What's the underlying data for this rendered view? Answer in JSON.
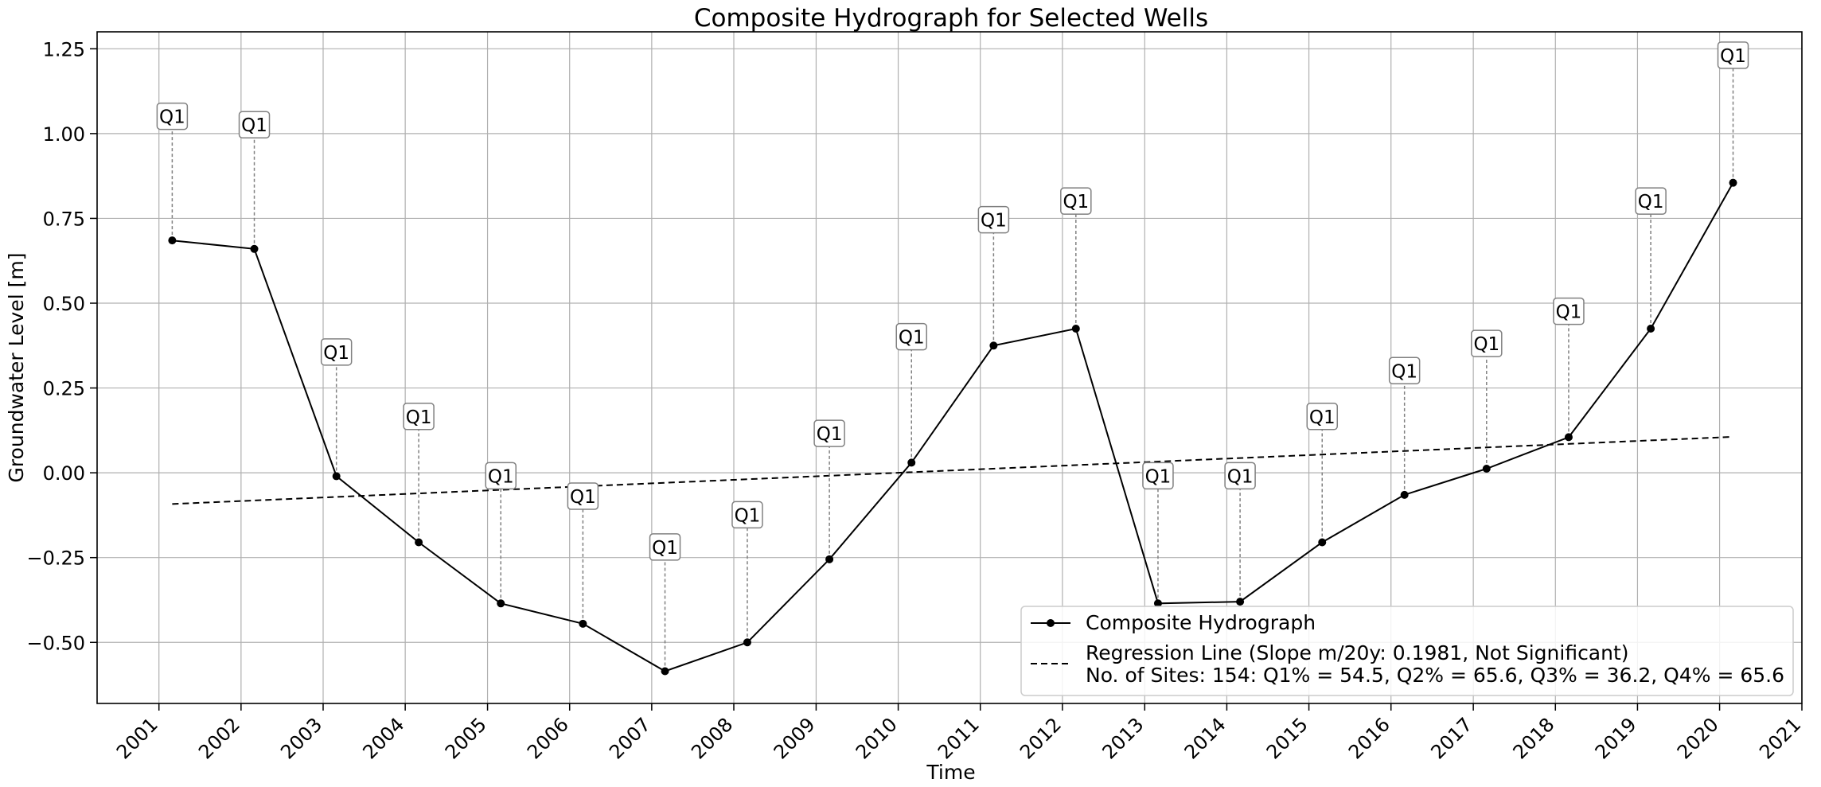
{
  "chart_data": {
    "type": "line",
    "title": "Composite Hydrograph for Selected Wells",
    "xlabel": "Time",
    "ylabel": "Groundwater Level [m]",
    "x_ticks": [
      "2001",
      "2002",
      "2003",
      "2004",
      "2005",
      "2006",
      "2007",
      "2008",
      "2009",
      "2010",
      "2011",
      "2012",
      "2013",
      "2014",
      "2015",
      "2016",
      "2017",
      "2018",
      "2019",
      "2020",
      "2021"
    ],
    "y_ticks": [
      "−0.50",
      "−0.25",
      "0.00",
      "0.25",
      "0.50",
      "0.75",
      "1.00",
      "1.25"
    ],
    "y_tick_values": [
      -0.5,
      -0.25,
      0.0,
      0.25,
      0.5,
      0.75,
      1.0,
      1.25
    ],
    "xlim": [
      "2000-04-01",
      "2021-01-01"
    ],
    "ylim": [
      -0.68,
      1.3
    ],
    "grid": true,
    "legend_position": "lower-right",
    "series": [
      {
        "name": "Composite Hydrograph",
        "color": "#000000",
        "marker": "circle",
        "line_style": "solid",
        "x": [
          "2001-03-01",
          "2002-03-01",
          "2003-03-01",
          "2004-03-01",
          "2005-03-01",
          "2006-03-01",
          "2007-03-01",
          "2008-03-01",
          "2009-03-01",
          "2010-03-01",
          "2011-03-01",
          "2012-03-01",
          "2013-03-01",
          "2014-03-01",
          "2015-03-01",
          "2016-03-01",
          "2017-03-01",
          "2018-03-01",
          "2019-03-01",
          "2020-03-01"
        ],
        "values": [
          0.685,
          0.66,
          -0.01,
          -0.205,
          -0.385,
          -0.445,
          -0.585,
          -0.5,
          -0.255,
          0.03,
          0.375,
          0.425,
          -0.385,
          -0.38,
          -0.205,
          -0.065,
          0.012,
          0.105,
          0.425,
          0.855
        ]
      },
      {
        "name": "Regression Line (Slope m/20y: 0.1981, Not Significant)\nNo. of Sites: 154: Q1% = 54.5, Q2% = 65.6, Q3% = 36.2, Q4% = 65.6",
        "legend_line1": "Regression Line (Slope m/20y: 0.1981, Not Significant)",
        "legend_line2": "No. of Sites: 154: Q1% = 54.5, Q2% = 65.6, Q3% = 36.2, Q4% = 65.6",
        "color": "#000000",
        "line_style": "dashed",
        "x": [
          "2001-03-01",
          "2020-03-01"
        ],
        "values": [
          -0.092,
          0.106
        ]
      }
    ],
    "annotations": {
      "label": "Q1",
      "x": [
        "2001-03-01",
        "2002-03-01",
        "2003-03-01",
        "2004-03-01",
        "2005-03-01",
        "2006-03-01",
        "2007-03-01",
        "2008-03-01",
        "2009-03-01",
        "2010-03-01",
        "2011-03-01",
        "2012-03-01",
        "2013-03-01",
        "2014-03-01",
        "2015-03-01",
        "2016-03-01",
        "2017-03-01",
        "2018-03-01",
        "2019-03-01",
        "2020-03-01"
      ],
      "values": [
        1.05,
        1.025,
        0.355,
        0.165,
        -0.01,
        -0.07,
        -0.22,
        -0.125,
        0.115,
        0.4,
        0.745,
        0.8,
        -0.01,
        -0.01,
        0.165,
        0.3,
        0.38,
        0.475,
        0.8,
        1.23
      ],
      "connector_color": "#808080"
    }
  }
}
